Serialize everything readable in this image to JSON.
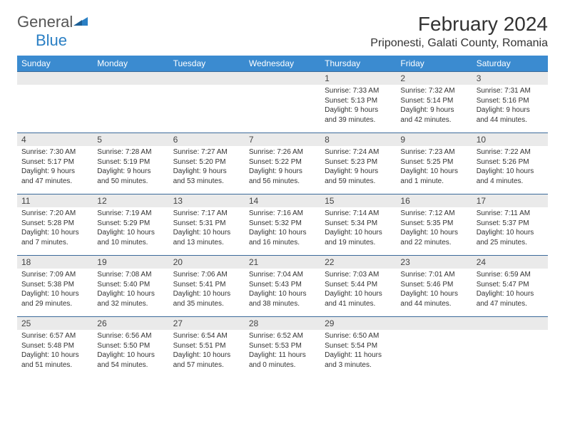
{
  "logo": {
    "part1": "General",
    "part2": "Blue"
  },
  "title": "February 2024",
  "location": "Priponesti, Galati County, Romania",
  "colors": {
    "header_bg": "#3b8bd0",
    "header_text": "#ffffff",
    "row_border": "#3b6a9a",
    "daynum_bg": "#eaeaea",
    "logo_blue": "#2a7fc4"
  },
  "weekdays": [
    "Sunday",
    "Monday",
    "Tuesday",
    "Wednesday",
    "Thursday",
    "Friday",
    "Saturday"
  ],
  "weeks": [
    [
      null,
      null,
      null,
      null,
      {
        "n": "1",
        "sr": "7:33 AM",
        "ss": "5:13 PM",
        "dl": "9 hours and 39 minutes."
      },
      {
        "n": "2",
        "sr": "7:32 AM",
        "ss": "5:14 PM",
        "dl": "9 hours and 42 minutes."
      },
      {
        "n": "3",
        "sr": "7:31 AM",
        "ss": "5:16 PM",
        "dl": "9 hours and 44 minutes."
      }
    ],
    [
      {
        "n": "4",
        "sr": "7:30 AM",
        "ss": "5:17 PM",
        "dl": "9 hours and 47 minutes."
      },
      {
        "n": "5",
        "sr": "7:28 AM",
        "ss": "5:19 PM",
        "dl": "9 hours and 50 minutes."
      },
      {
        "n": "6",
        "sr": "7:27 AM",
        "ss": "5:20 PM",
        "dl": "9 hours and 53 minutes."
      },
      {
        "n": "7",
        "sr": "7:26 AM",
        "ss": "5:22 PM",
        "dl": "9 hours and 56 minutes."
      },
      {
        "n": "8",
        "sr": "7:24 AM",
        "ss": "5:23 PM",
        "dl": "9 hours and 59 minutes."
      },
      {
        "n": "9",
        "sr": "7:23 AM",
        "ss": "5:25 PM",
        "dl": "10 hours and 1 minute."
      },
      {
        "n": "10",
        "sr": "7:22 AM",
        "ss": "5:26 PM",
        "dl": "10 hours and 4 minutes."
      }
    ],
    [
      {
        "n": "11",
        "sr": "7:20 AM",
        "ss": "5:28 PM",
        "dl": "10 hours and 7 minutes."
      },
      {
        "n": "12",
        "sr": "7:19 AM",
        "ss": "5:29 PM",
        "dl": "10 hours and 10 minutes."
      },
      {
        "n": "13",
        "sr": "7:17 AM",
        "ss": "5:31 PM",
        "dl": "10 hours and 13 minutes."
      },
      {
        "n": "14",
        "sr": "7:16 AM",
        "ss": "5:32 PM",
        "dl": "10 hours and 16 minutes."
      },
      {
        "n": "15",
        "sr": "7:14 AM",
        "ss": "5:34 PM",
        "dl": "10 hours and 19 minutes."
      },
      {
        "n": "16",
        "sr": "7:12 AM",
        "ss": "5:35 PM",
        "dl": "10 hours and 22 minutes."
      },
      {
        "n": "17",
        "sr": "7:11 AM",
        "ss": "5:37 PM",
        "dl": "10 hours and 25 minutes."
      }
    ],
    [
      {
        "n": "18",
        "sr": "7:09 AM",
        "ss": "5:38 PM",
        "dl": "10 hours and 29 minutes."
      },
      {
        "n": "19",
        "sr": "7:08 AM",
        "ss": "5:40 PM",
        "dl": "10 hours and 32 minutes."
      },
      {
        "n": "20",
        "sr": "7:06 AM",
        "ss": "5:41 PM",
        "dl": "10 hours and 35 minutes."
      },
      {
        "n": "21",
        "sr": "7:04 AM",
        "ss": "5:43 PM",
        "dl": "10 hours and 38 minutes."
      },
      {
        "n": "22",
        "sr": "7:03 AM",
        "ss": "5:44 PM",
        "dl": "10 hours and 41 minutes."
      },
      {
        "n": "23",
        "sr": "7:01 AM",
        "ss": "5:46 PM",
        "dl": "10 hours and 44 minutes."
      },
      {
        "n": "24",
        "sr": "6:59 AM",
        "ss": "5:47 PM",
        "dl": "10 hours and 47 minutes."
      }
    ],
    [
      {
        "n": "25",
        "sr": "6:57 AM",
        "ss": "5:48 PM",
        "dl": "10 hours and 51 minutes."
      },
      {
        "n": "26",
        "sr": "6:56 AM",
        "ss": "5:50 PM",
        "dl": "10 hours and 54 minutes."
      },
      {
        "n": "27",
        "sr": "6:54 AM",
        "ss": "5:51 PM",
        "dl": "10 hours and 57 minutes."
      },
      {
        "n": "28",
        "sr": "6:52 AM",
        "ss": "5:53 PM",
        "dl": "11 hours and 0 minutes."
      },
      {
        "n": "29",
        "sr": "6:50 AM",
        "ss": "5:54 PM",
        "dl": "11 hours and 3 minutes."
      },
      null,
      null
    ]
  ],
  "labels": {
    "sunrise": "Sunrise: ",
    "sunset": "Sunset: ",
    "daylight": "Daylight: "
  }
}
